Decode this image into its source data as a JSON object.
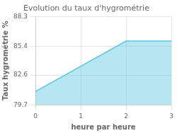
{
  "chart_data": {
    "type": "area",
    "title": "Evolution du taux d'hygrométrie",
    "xlabel": "heure par heure",
    "ylabel": "Taux hygrométrie %",
    "x": [
      0,
      2,
      3
    ],
    "values": [
      81.0,
      85.9,
      85.9
    ],
    "color": "#5bc8e0",
    "xlim": [
      0,
      3
    ],
    "xticks": [
      0,
      1,
      2,
      3
    ],
    "ylim": [
      79.7,
      88.3
    ],
    "yticks": [
      79.7,
      82.6,
      85.4,
      88.3
    ],
    "grid": true
  }
}
